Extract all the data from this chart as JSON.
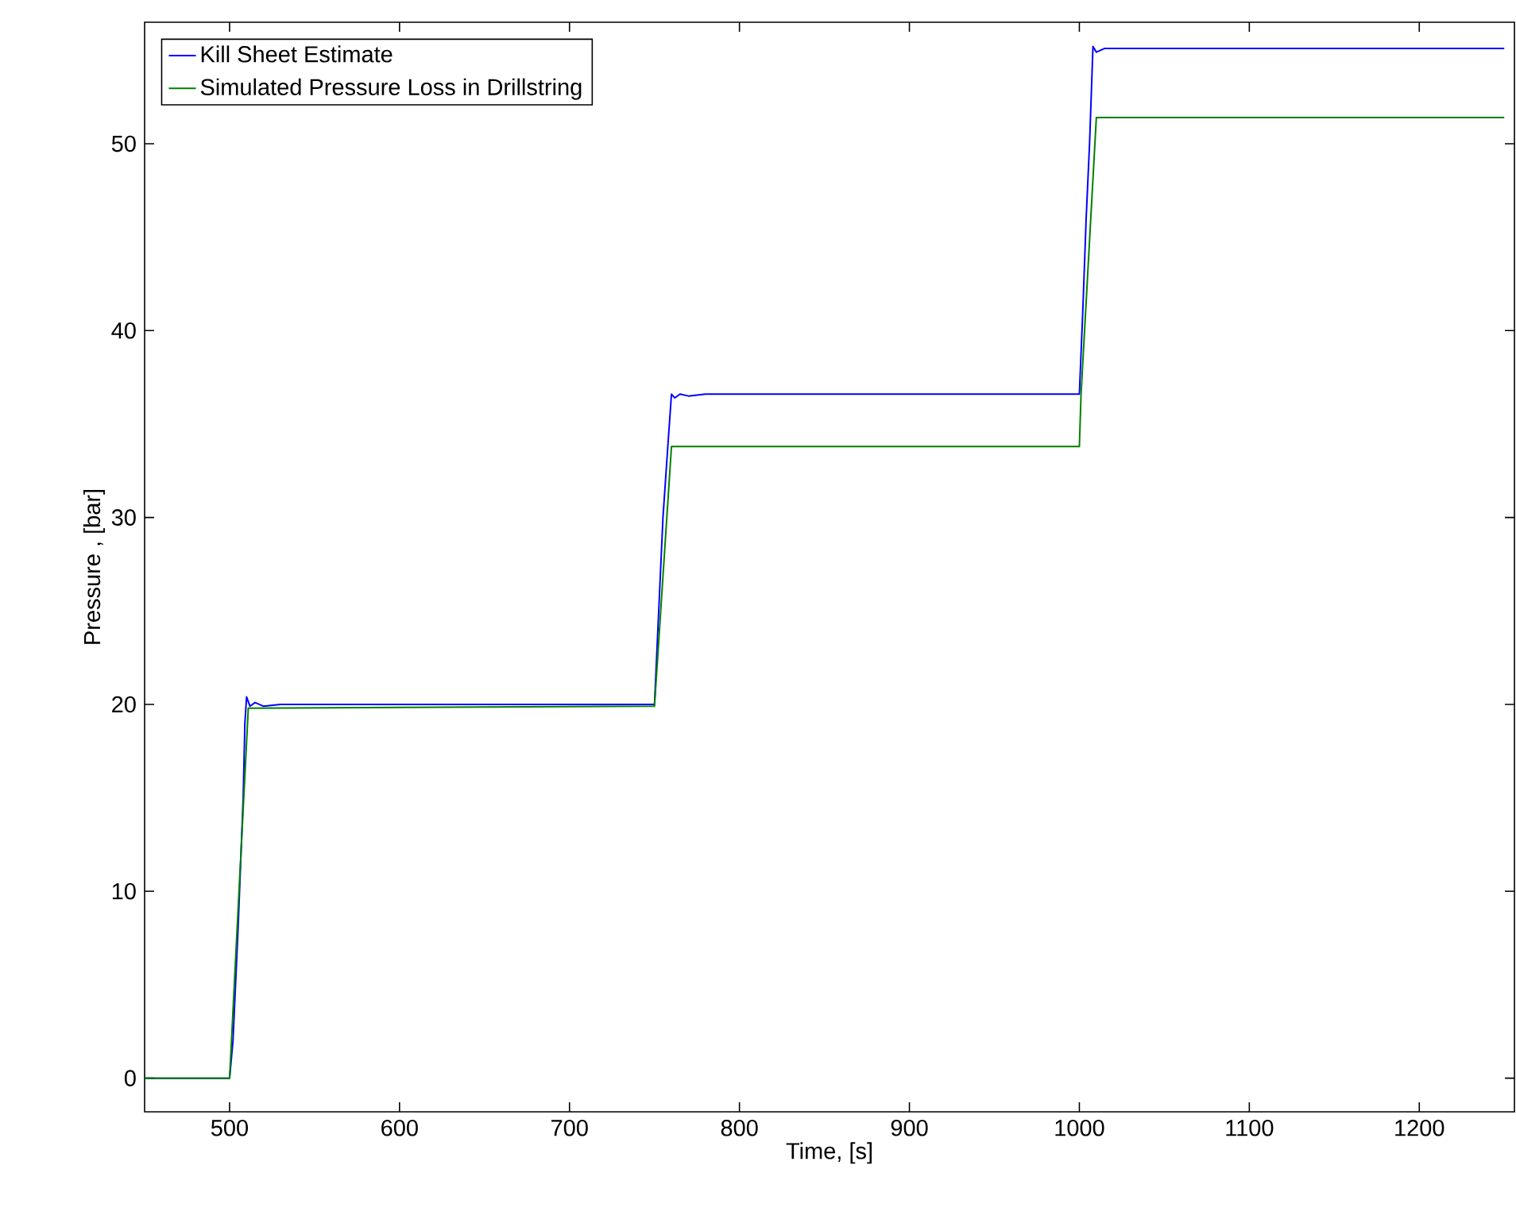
{
  "chart_data": {
    "type": "line",
    "xlabel": "Time, [s]",
    "ylabel": "Pressure , [bar]",
    "xlim": [
      450,
      1256
    ],
    "ylim": [
      -1.8,
      56.5
    ],
    "xticks": [
      500,
      600,
      700,
      800,
      900,
      1000,
      1100,
      1200
    ],
    "yticks": [
      0,
      10,
      20,
      30,
      40,
      50
    ],
    "legend": "top left",
    "line_style": "solid",
    "series": [
      {
        "name": "Kill Sheet Estimate",
        "color": "#0000ff",
        "x": [
          450,
          500,
          502,
          505,
          508,
          509,
          510,
          512,
          515,
          520,
          530,
          560,
          600,
          750,
          752,
          755,
          758,
          760,
          762,
          765,
          770,
          780,
          800,
          1000,
          1002,
          1004,
          1006,
          1008,
          1010,
          1015,
          1020,
          1250
        ],
        "values": [
          0,
          0,
          2,
          8,
          15,
          19,
          20.4,
          19.9,
          20.1,
          19.9,
          20,
          20,
          20,
          20,
          24,
          30,
          34,
          36.6,
          36.4,
          36.6,
          36.5,
          36.6,
          36.6,
          36.6,
          41,
          46,
          50,
          55.2,
          54.9,
          55.1,
          55.1,
          55.1
        ]
      },
      {
        "name": "Simulated Pressure Loss in Drillstring",
        "color": "#008000",
        "x": [
          450,
          500,
          511,
          750,
          760,
          1000,
          1001,
          1010,
          1250
        ],
        "values": [
          0,
          0,
          19.8,
          19.9,
          33.8,
          33.8,
          36.6,
          51.4,
          51.4
        ]
      }
    ]
  }
}
